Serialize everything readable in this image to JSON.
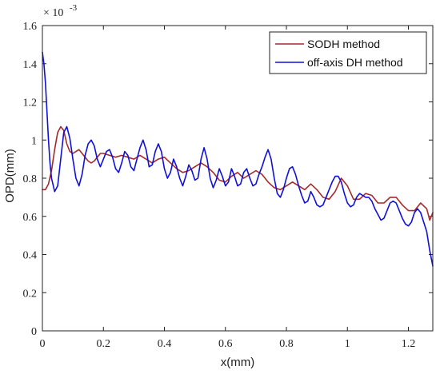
{
  "chart_data": {
    "type": "line",
    "title": "",
    "xlabel": "x(mm)",
    "ylabel": "OPD(mm)",
    "y_multiplier_label": "× 10",
    "y_multiplier_exponent": "-3",
    "xlim": [
      0,
      1.28
    ],
    "ylim": [
      0,
      1.6
    ],
    "x_ticks": [
      "0",
      "0.2",
      "0.4",
      "0.6",
      "0.8",
      "1",
      "1.2"
    ],
    "y_ticks": [
      "0",
      "0.2",
      "0.4",
      "0.6",
      "0.8",
      "1",
      "1.2",
      "1.4",
      "1.6"
    ],
    "legend_position": "top-right",
    "series": [
      {
        "name": "SODH method",
        "color": "#a52a2a",
        "points": [
          [
            0.0,
            0.74
          ],
          [
            0.01,
            0.74
          ],
          [
            0.02,
            0.77
          ],
          [
            0.03,
            0.84
          ],
          [
            0.04,
            0.95
          ],
          [
            0.05,
            1.04
          ],
          [
            0.06,
            1.07
          ],
          [
            0.07,
            1.05
          ],
          [
            0.08,
            0.98
          ],
          [
            0.09,
            0.94
          ],
          [
            0.1,
            0.93
          ],
          [
            0.11,
            0.94
          ],
          [
            0.12,
            0.95
          ],
          [
            0.13,
            0.93
          ],
          [
            0.14,
            0.91
          ],
          [
            0.15,
            0.89
          ],
          [
            0.16,
            0.88
          ],
          [
            0.17,
            0.89
          ],
          [
            0.18,
            0.91
          ],
          [
            0.19,
            0.93
          ],
          [
            0.2,
            0.93
          ],
          [
            0.22,
            0.92
          ],
          [
            0.24,
            0.91
          ],
          [
            0.26,
            0.92
          ],
          [
            0.28,
            0.91
          ],
          [
            0.3,
            0.9
          ],
          [
            0.32,
            0.92
          ],
          [
            0.34,
            0.9
          ],
          [
            0.36,
            0.88
          ],
          [
            0.38,
            0.9
          ],
          [
            0.4,
            0.91
          ],
          [
            0.42,
            0.88
          ],
          [
            0.44,
            0.85
          ],
          [
            0.46,
            0.83
          ],
          [
            0.48,
            0.84
          ],
          [
            0.5,
            0.86
          ],
          [
            0.52,
            0.88
          ],
          [
            0.54,
            0.86
          ],
          [
            0.56,
            0.83
          ],
          [
            0.58,
            0.79
          ],
          [
            0.6,
            0.78
          ],
          [
            0.62,
            0.81
          ],
          [
            0.64,
            0.83
          ],
          [
            0.66,
            0.8
          ],
          [
            0.68,
            0.82
          ],
          [
            0.7,
            0.84
          ],
          [
            0.72,
            0.82
          ],
          [
            0.74,
            0.78
          ],
          [
            0.76,
            0.75
          ],
          [
            0.78,
            0.74
          ],
          [
            0.8,
            0.76
          ],
          [
            0.82,
            0.78
          ],
          [
            0.84,
            0.76
          ],
          [
            0.86,
            0.74
          ],
          [
            0.88,
            0.77
          ],
          [
            0.9,
            0.74
          ],
          [
            0.92,
            0.7
          ],
          [
            0.94,
            0.69
          ],
          [
            0.96,
            0.73
          ],
          [
            0.98,
            0.8
          ],
          [
            1.0,
            0.76
          ],
          [
            1.02,
            0.69
          ],
          [
            1.04,
            0.69
          ],
          [
            1.06,
            0.72
          ],
          [
            1.08,
            0.71
          ],
          [
            1.1,
            0.67
          ],
          [
            1.12,
            0.67
          ],
          [
            1.14,
            0.7
          ],
          [
            1.16,
            0.7
          ],
          [
            1.18,
            0.66
          ],
          [
            1.2,
            0.63
          ],
          [
            1.22,
            0.63
          ],
          [
            1.24,
            0.67
          ],
          [
            1.26,
            0.64
          ],
          [
            1.27,
            0.58
          ],
          [
            1.28,
            0.62
          ]
        ]
      },
      {
        "name": "off-axis DH method",
        "color": "#1010d8",
        "points": [
          [
            0.0,
            1.46
          ],
          [
            0.005,
            1.4
          ],
          [
            0.01,
            1.3
          ],
          [
            0.015,
            1.15
          ],
          [
            0.02,
            1.0
          ],
          [
            0.025,
            0.88
          ],
          [
            0.03,
            0.8
          ],
          [
            0.04,
            0.73
          ],
          [
            0.05,
            0.76
          ],
          [
            0.06,
            0.9
          ],
          [
            0.07,
            1.04
          ],
          [
            0.08,
            1.07
          ],
          [
            0.09,
            1.01
          ],
          [
            0.1,
            0.9
          ],
          [
            0.11,
            0.8
          ],
          [
            0.12,
            0.76
          ],
          [
            0.13,
            0.82
          ],
          [
            0.14,
            0.92
          ],
          [
            0.15,
            0.98
          ],
          [
            0.16,
            1.0
          ],
          [
            0.17,
            0.97
          ],
          [
            0.18,
            0.9
          ],
          [
            0.19,
            0.86
          ],
          [
            0.2,
            0.9
          ],
          [
            0.21,
            0.94
          ],
          [
            0.22,
            0.95
          ],
          [
            0.23,
            0.91
          ],
          [
            0.24,
            0.85
          ],
          [
            0.25,
            0.83
          ],
          [
            0.26,
            0.88
          ],
          [
            0.27,
            0.94
          ],
          [
            0.28,
            0.92
          ],
          [
            0.29,
            0.86
          ],
          [
            0.3,
            0.84
          ],
          [
            0.31,
            0.9
          ],
          [
            0.32,
            0.96
          ],
          [
            0.33,
            1.0
          ],
          [
            0.34,
            0.95
          ],
          [
            0.35,
            0.86
          ],
          [
            0.36,
            0.87
          ],
          [
            0.37,
            0.94
          ],
          [
            0.38,
            0.98
          ],
          [
            0.39,
            0.94
          ],
          [
            0.4,
            0.85
          ],
          [
            0.41,
            0.8
          ],
          [
            0.42,
            0.83
          ],
          [
            0.43,
            0.9
          ],
          [
            0.44,
            0.86
          ],
          [
            0.45,
            0.8
          ],
          [
            0.46,
            0.76
          ],
          [
            0.47,
            0.81
          ],
          [
            0.48,
            0.87
          ],
          [
            0.49,
            0.84
          ],
          [
            0.5,
            0.79
          ],
          [
            0.51,
            0.8
          ],
          [
            0.52,
            0.9
          ],
          [
            0.53,
            0.96
          ],
          [
            0.54,
            0.9
          ],
          [
            0.55,
            0.8
          ],
          [
            0.56,
            0.75
          ],
          [
            0.57,
            0.79
          ],
          [
            0.58,
            0.85
          ],
          [
            0.59,
            0.81
          ],
          [
            0.6,
            0.76
          ],
          [
            0.61,
            0.78
          ],
          [
            0.62,
            0.85
          ],
          [
            0.63,
            0.81
          ],
          [
            0.64,
            0.76
          ],
          [
            0.65,
            0.77
          ],
          [
            0.66,
            0.83
          ],
          [
            0.67,
            0.85
          ],
          [
            0.68,
            0.8
          ],
          [
            0.69,
            0.76
          ],
          [
            0.7,
            0.77
          ],
          [
            0.71,
            0.82
          ],
          [
            0.72,
            0.86
          ],
          [
            0.73,
            0.91
          ],
          [
            0.74,
            0.95
          ],
          [
            0.75,
            0.9
          ],
          [
            0.76,
            0.8
          ],
          [
            0.77,
            0.72
          ],
          [
            0.78,
            0.7
          ],
          [
            0.79,
            0.74
          ],
          [
            0.8,
            0.8
          ],
          [
            0.81,
            0.85
          ],
          [
            0.82,
            0.86
          ],
          [
            0.83,
            0.82
          ],
          [
            0.84,
            0.76
          ],
          [
            0.85,
            0.71
          ],
          [
            0.86,
            0.67
          ],
          [
            0.87,
            0.68
          ],
          [
            0.88,
            0.73
          ],
          [
            0.89,
            0.7
          ],
          [
            0.9,
            0.66
          ],
          [
            0.91,
            0.65
          ],
          [
            0.92,
            0.66
          ],
          [
            0.93,
            0.7
          ],
          [
            0.94,
            0.74
          ],
          [
            0.95,
            0.78
          ],
          [
            0.96,
            0.81
          ],
          [
            0.97,
            0.81
          ],
          [
            0.98,
            0.78
          ],
          [
            0.99,
            0.72
          ],
          [
            1.0,
            0.67
          ],
          [
            1.01,
            0.65
          ],
          [
            1.02,
            0.66
          ],
          [
            1.03,
            0.7
          ],
          [
            1.04,
            0.72
          ],
          [
            1.05,
            0.71
          ],
          [
            1.06,
            0.7
          ],
          [
            1.07,
            0.7
          ],
          [
            1.08,
            0.68
          ],
          [
            1.09,
            0.64
          ],
          [
            1.1,
            0.61
          ],
          [
            1.11,
            0.58
          ],
          [
            1.12,
            0.59
          ],
          [
            1.13,
            0.63
          ],
          [
            1.14,
            0.67
          ],
          [
            1.15,
            0.68
          ],
          [
            1.16,
            0.67
          ],
          [
            1.17,
            0.63
          ],
          [
            1.18,
            0.59
          ],
          [
            1.19,
            0.56
          ],
          [
            1.2,
            0.55
          ],
          [
            1.21,
            0.57
          ],
          [
            1.22,
            0.62
          ],
          [
            1.23,
            0.64
          ],
          [
            1.24,
            0.62
          ],
          [
            1.25,
            0.57
          ],
          [
            1.26,
            0.52
          ],
          [
            1.27,
            0.42
          ],
          [
            1.28,
            0.34
          ]
        ]
      }
    ]
  }
}
